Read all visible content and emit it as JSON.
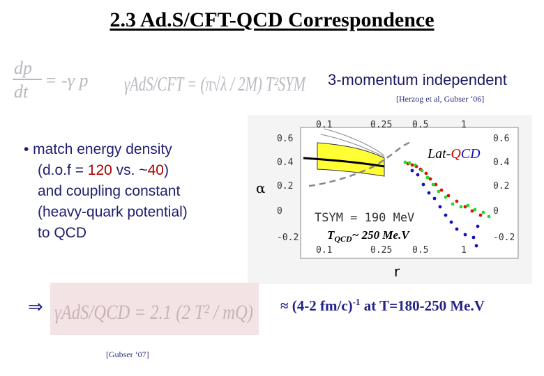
{
  "title": "2.3 Ad.S/CFT-QCD Correspondence",
  "formula_top": {
    "lhs_num": "dp",
    "lhs_den": "dt",
    "rhs": "= -γ p",
    "gamma_expr": "γAdS/CFT = (π√λ / 2M) T²SYM"
  },
  "momentum_label": "3-momentum independent",
  "ref_top": "[Herzog et al, Gubser ‘06]",
  "bullets": {
    "line1": "• match energy density",
    "line2_prefix": "(d.o.f = ",
    "line2_v1": "120",
    "line2_mid": " vs. ~",
    "line2_v2": "40",
    "line2_suffix": ")",
    "line3": "and coupling constant",
    "line4": "(heavy-quark potential)",
    "line5": "to QCD"
  },
  "arrow": "⇒",
  "formula_bottom": "γAdS/QCD = 2.1 (2 T² / mQ)",
  "approx_prefix": "≈ (4-2 fm/c)",
  "approx_sup": "-1",
  "approx_suffix": " at T=180-250 Me.V",
  "ref_bottom": "[Gubser ‘07]",
  "plot": {
    "xlabel": "r",
    "ylabel": "α",
    "x_ticks": [
      "0.1",
      "0.25",
      "0.5",
      "1"
    ],
    "y_ticks": [
      "0.6",
      "0.4",
      "0.2",
      "0",
      "-0.2"
    ],
    "lat_qcd_a": "Lat-",
    "lat_qcd_b": "Q",
    "lat_qcd_c": "CD",
    "tsym_label": "TSYM = 190 MeV",
    "tqcd_main": "T",
    "tqcd_sub": "QCD",
    "tqcd_rest": "~ 250 Me.V",
    "colors": {
      "band": "#ffff33",
      "red": "#e01010",
      "green": "#22dd22",
      "blue": "#1010c0"
    }
  }
}
